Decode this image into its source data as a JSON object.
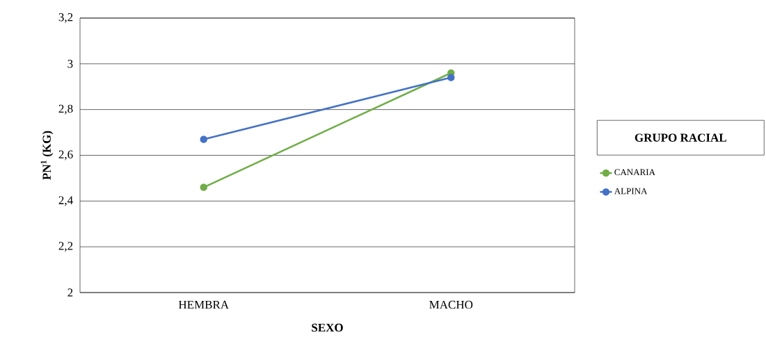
{
  "chart_data": {
    "type": "line",
    "xlabel": "SEXO",
    "ylabel": "PN$^{1}$ (KG)",
    "legend_title": "GRUPO RACIAL",
    "categories": [
      "HEMBRA",
      "MACHO"
    ],
    "series": [
      {
        "name": "CANARIA",
        "color": "#70ad47",
        "values": [
          2.46,
          2.96
        ]
      },
      {
        "name": "ALPINA",
        "color": "#4472c4",
        "values": [
          2.67,
          2.94
        ]
      }
    ],
    "ylim": [
      2,
      3.2
    ],
    "yticks": [
      2,
      {
        "value": 2.2,
        "label": "2,2"
      },
      {
        "value": 2.4,
        "label": "2,4"
      },
      {
        "value": 2.6,
        "label": "2,6"
      },
      {
        "value": 2.8,
        "label": "2,8"
      },
      3,
      {
        "value": 3.2,
        "label": "3,2"
      }
    ],
    "grid": "y",
    "legend": "right",
    "marker": "circle",
    "line_style": "solid"
  }
}
